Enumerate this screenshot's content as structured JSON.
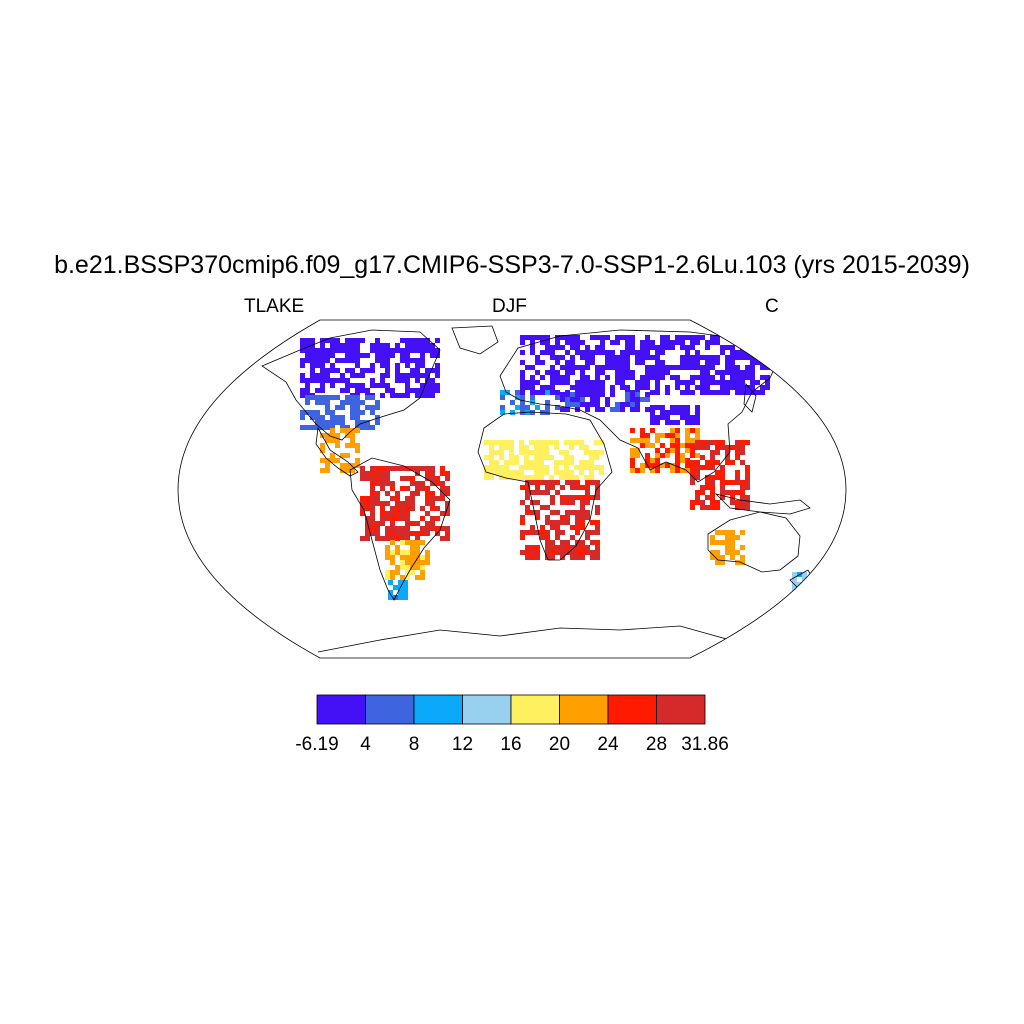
{
  "title": "b.e21.BSSP370cmip6.f09_g17.CMIP6-SSP3-7.0-SSP1-2.6Lu.103 (yrs 2015-2039)",
  "left_label": "TLAKE",
  "center_label": "DJF",
  "right_label": "C",
  "map": {
    "projection": "robinson",
    "variable": "TLAKE",
    "season": "DJF",
    "units": "C",
    "regions": [
      {
        "name": "north-america-north",
        "value": -3
      },
      {
        "name": "north-america-mid",
        "value": 6
      },
      {
        "name": "central-america",
        "value": 22
      },
      {
        "name": "amazon",
        "value": 29
      },
      {
        "name": "south-america-south",
        "value": 21
      },
      {
        "name": "patagonia",
        "value": 9
      },
      {
        "name": "europe",
        "value": 8
      },
      {
        "name": "north-eurasia",
        "value": -3
      },
      {
        "name": "central-asia",
        "value": 3
      },
      {
        "name": "sahel",
        "value": 18
      },
      {
        "name": "central-africa",
        "value": 29
      },
      {
        "name": "india",
        "value": 24
      },
      {
        "name": "southeast-asia",
        "value": 28
      },
      {
        "name": "australia",
        "value": 22
      },
      {
        "name": "new-zealand",
        "value": 12
      }
    ]
  },
  "colorbar": {
    "labels": [
      "-6.19",
      "4",
      "8",
      "12",
      "16",
      "20",
      "24",
      "28",
      "31.86"
    ],
    "colors": [
      "#4410f5",
      "#3f64e0",
      "#0ca8fa",
      "#98d1ef",
      "#fff060",
      "#ff9f00",
      "#ff1a00",
      "#d42a2a"
    ]
  }
}
